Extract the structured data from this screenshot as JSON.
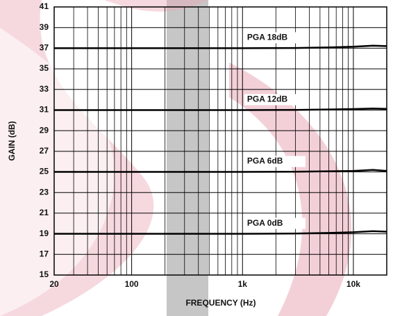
{
  "chart_data": {
    "type": "line",
    "xlabel": "FREQUENCY (Hz)",
    "ylabel": "GAIN (dB)",
    "log_x": true,
    "grid": true,
    "xlim": [
      20,
      20000
    ],
    "ylim": [
      15,
      41
    ],
    "xticks": [
      20,
      100,
      {
        "value": 1000,
        "label": "1k"
      },
      {
        "value": 10000,
        "label": "10k"
      }
    ],
    "xminorticks": [
      30,
      40,
      50,
      60,
      70,
      80,
      90,
      200,
      300,
      400,
      500,
      600,
      700,
      800,
      900,
      2000,
      3000,
      4000,
      5000,
      6000,
      7000,
      8000,
      9000
    ],
    "yticks": [
      15,
      17,
      19,
      21,
      23,
      25,
      27,
      29,
      31,
      33,
      35,
      37,
      39,
      41
    ],
    "x": [
      20,
      100,
      1000,
      3000,
      6000,
      10000,
      15000,
      20000
    ],
    "series": [
      {
        "name": "PGA 18dB",
        "color": "#000000",
        "values": [
          37,
          37,
          37,
          37.02,
          37.08,
          37.15,
          37.25,
          37.2
        ]
      },
      {
        "name": "PGA 12dB",
        "color": "#000000",
        "values": [
          31,
          31,
          31,
          31.02,
          31.06,
          31.1,
          31.15,
          31.12
        ]
      },
      {
        "name": "PGA 6dB",
        "color": "#000000",
        "values": [
          25,
          25,
          25,
          25.02,
          25.06,
          25.1,
          25.2,
          25.1
        ]
      },
      {
        "name": "PGA 0dB",
        "color": "#000000",
        "values": [
          19,
          19,
          19,
          19.02,
          19.08,
          19.15,
          19.25,
          19.2
        ]
      }
    ]
  }
}
